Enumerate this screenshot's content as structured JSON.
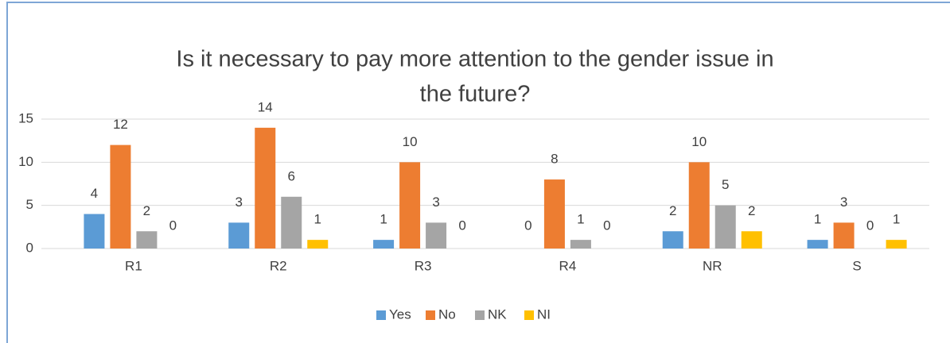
{
  "chart_data": {
    "type": "bar",
    "title": [
      "Is it necessary to pay more attention to the gender issue in",
      "the future?"
    ],
    "categories": [
      "R1",
      "R2",
      "R3",
      "R4",
      "NR",
      "S"
    ],
    "series": [
      {
        "name": "Yes",
        "color": "#5b9bd5",
        "values": [
          4,
          3,
          1,
          0,
          2,
          1
        ]
      },
      {
        "name": "No",
        "color": "#ed7d31",
        "values": [
          12,
          14,
          10,
          8,
          10,
          3
        ]
      },
      {
        "name": "NK",
        "color": "#a5a5a5",
        "values": [
          2,
          6,
          3,
          1,
          5,
          0
        ]
      },
      {
        "name": "NI",
        "color": "#ffc000",
        "values": [
          0,
          1,
          0,
          0,
          2,
          1
        ]
      }
    ],
    "ylim": [
      0,
      15
    ],
    "yticks": [
      0,
      5,
      10,
      15
    ],
    "grid": true,
    "legend": "bottom"
  }
}
